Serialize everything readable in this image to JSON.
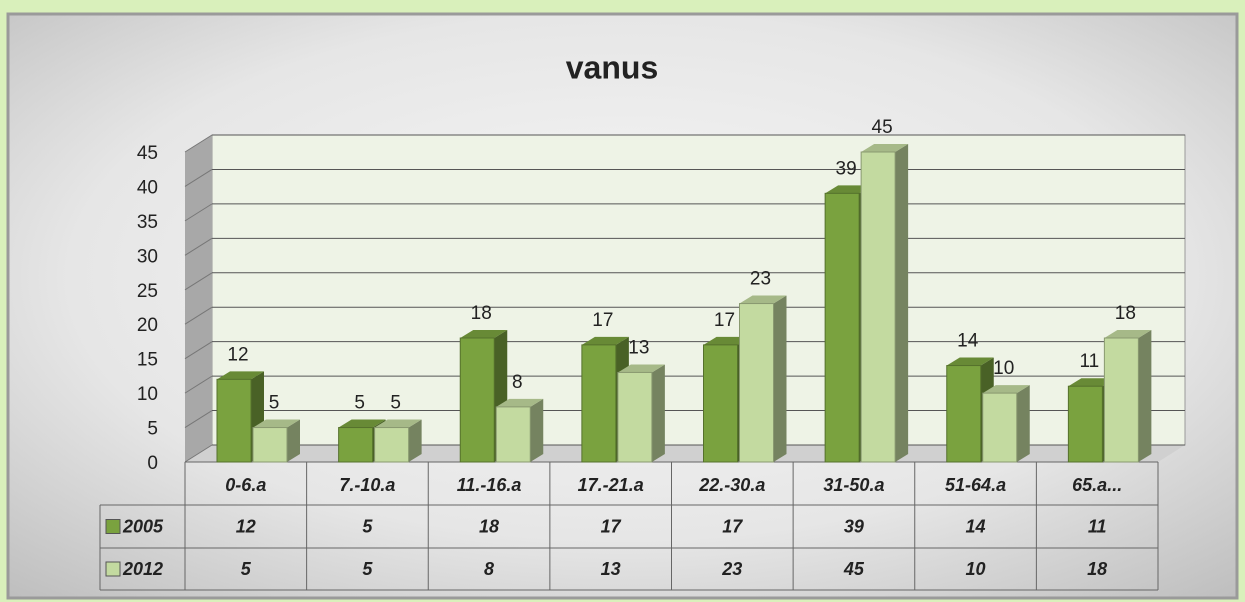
{
  "chart_data": {
    "type": "bar",
    "title": "vanus",
    "categories": [
      "0-6.a",
      "7.-10.a",
      "11.-16.a",
      "17.-21.a",
      "22.-30.a",
      "31-50.a",
      "51-64.a",
      "65.a..."
    ],
    "series": [
      {
        "name": "2005",
        "color": "#7aa23f",
        "values": [
          12,
          5,
          18,
          17,
          17,
          39,
          14,
          11
        ]
      },
      {
        "name": "2012",
        "color": "#c3daa0",
        "values": [
          5,
          5,
          8,
          13,
          23,
          45,
          10,
          18
        ]
      }
    ],
    "ylim": [
      0,
      45
    ],
    "yticks": [
      0,
      5,
      10,
      15,
      20,
      25,
      30,
      35,
      40,
      45
    ],
    "grid": true
  }
}
